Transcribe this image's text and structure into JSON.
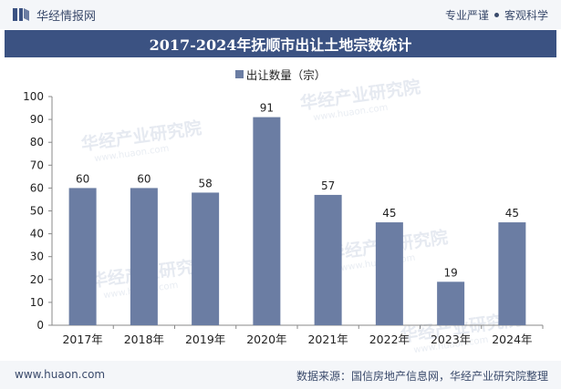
{
  "header": {
    "brand": "华经情报网",
    "slogan_left": "专业严谨",
    "slogan_right": "客观科学"
  },
  "title": "2017-2024年抚顺市出让土地宗数统计",
  "watermark": {
    "name": "华经产业研究院",
    "site": "www.huaon.com"
  },
  "footer": {
    "website": "www.huaon.com",
    "source": "数据来源：国信房地产信息网，华经产业研究院整理"
  },
  "colors": {
    "bar": "#6b7da3",
    "title_bg": "#3b5282",
    "bar_dark": "#3b5282"
  },
  "chart_data": {
    "type": "bar",
    "categories": [
      "2017年",
      "2018年",
      "2019年",
      "2020年",
      "2021年",
      "2022年",
      "2023年",
      "2024年"
    ],
    "series": [
      {
        "name": "出让数量（宗）",
        "values": [
          60,
          60,
          58,
          91,
          57,
          45,
          19,
          45
        ]
      }
    ],
    "ylim": [
      0,
      100
    ],
    "yticks": [
      0,
      10,
      20,
      30,
      40,
      50,
      60,
      70,
      80,
      90,
      100
    ],
    "legend": "top-center",
    "grid": false
  }
}
